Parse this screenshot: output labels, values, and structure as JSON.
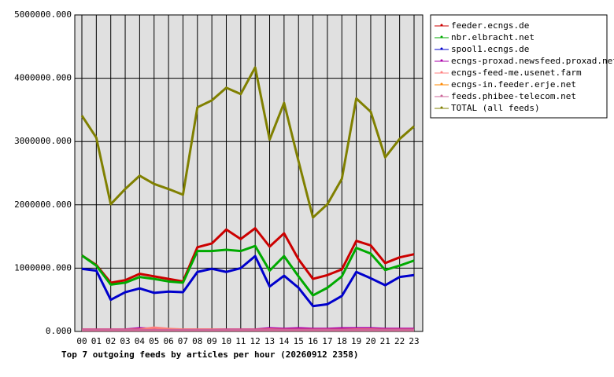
{
  "chart_data": {
    "type": "line",
    "title": "Top 7 outgoing feeds by articles per hour (20260912 2358)",
    "categories": [
      "00",
      "01",
      "02",
      "03",
      "04",
      "05",
      "06",
      "07",
      "08",
      "09",
      "10",
      "11",
      "12",
      "13",
      "14",
      "15",
      "16",
      "17",
      "18",
      "19",
      "20",
      "21",
      "22",
      "23"
    ],
    "ylim": [
      0,
      5000000
    ],
    "yticks": [
      {
        "value": 0,
        "label": "0.000"
      },
      {
        "value": 1000000,
        "label": "1000000.000"
      },
      {
        "value": 2000000,
        "label": "2000000.000"
      },
      {
        "value": 3000000,
        "label": "3000000.000"
      },
      {
        "value": 4000000,
        "label": "4000000.000"
      },
      {
        "value": 5000000,
        "label": "5000000.000"
      }
    ],
    "grid": true,
    "legend": "right",
    "series": [
      {
        "name": "feeder.ecngs.de",
        "color": "#cc0000",
        "values": [
          1200000,
          1050000,
          770000,
          810000,
          910000,
          870000,
          830000,
          790000,
          1330000,
          1390000,
          1610000,
          1460000,
          1630000,
          1340000,
          1550000,
          1140000,
          830000,
          890000,
          980000,
          1430000,
          1360000,
          1080000,
          1170000,
          1220000
        ]
      },
      {
        "name": "nbr.elbracht.net",
        "color": "#00aa00",
        "values": [
          1200000,
          1040000,
          740000,
          770000,
          860000,
          830000,
          790000,
          770000,
          1270000,
          1270000,
          1290000,
          1270000,
          1350000,
          960000,
          1190000,
          870000,
          570000,
          690000,
          870000,
          1320000,
          1230000,
          970000,
          1040000,
          1120000
        ]
      },
      {
        "name": "spool1.ecngs.de",
        "color": "#0000cc",
        "values": [
          990000,
          960000,
          500000,
          620000,
          680000,
          610000,
          630000,
          620000,
          940000,
          990000,
          940000,
          1000000,
          1190000,
          710000,
          880000,
          690000,
          400000,
          430000,
          560000,
          940000,
          840000,
          730000,
          860000,
          890000
        ]
      },
      {
        "name": "ecngs-proxad.newsfeed.proxad.net",
        "color": "#aa00aa",
        "values": [
          30000,
          30000,
          30000,
          30000,
          50000,
          40000,
          30000,
          30000,
          30000,
          30000,
          30000,
          30000,
          30000,
          50000,
          40000,
          50000,
          40000,
          40000,
          50000,
          50000,
          50000,
          40000,
          40000,
          40000
        ]
      },
      {
        "name": "ecngs-feed-me.usenet.farm",
        "color": "#ff8080",
        "values": [
          25000,
          25000,
          25000,
          25000,
          30000,
          60000,
          40000,
          30000,
          30000,
          30000,
          25000,
          25000,
          25000,
          30000,
          25000,
          25000,
          25000,
          25000,
          25000,
          30000,
          30000,
          25000,
          25000,
          25000
        ]
      },
      {
        "name": "ecngs-in.feeder.erje.net",
        "color": "#ff8800",
        "values": [
          20000,
          20000,
          20000,
          20000,
          20000,
          20000,
          20000,
          20000,
          20000,
          20000,
          20000,
          20000,
          20000,
          20000,
          20000,
          20000,
          20000,
          20000,
          20000,
          20000,
          20000,
          20000,
          20000,
          20000
        ]
      },
      {
        "name": "feeds.phibee-telecom.net",
        "color": "#cc6699",
        "values": [
          20000,
          20000,
          20000,
          20000,
          20000,
          20000,
          20000,
          20000,
          20000,
          20000,
          20000,
          20000,
          20000,
          20000,
          20000,
          20000,
          20000,
          20000,
          20000,
          20000,
          20000,
          20000,
          20000,
          20000
        ]
      },
      {
        "name": "TOTAL (all feeds)",
        "color": "#808000",
        "values": [
          3410000,
          3060000,
          2010000,
          2250000,
          2460000,
          2330000,
          2250000,
          2160000,
          3540000,
          3650000,
          3850000,
          3750000,
          4170000,
          3030000,
          3610000,
          2690000,
          1800000,
          2010000,
          2410000,
          3680000,
          3470000,
          2750000,
          3040000,
          3240000
        ]
      }
    ]
  }
}
